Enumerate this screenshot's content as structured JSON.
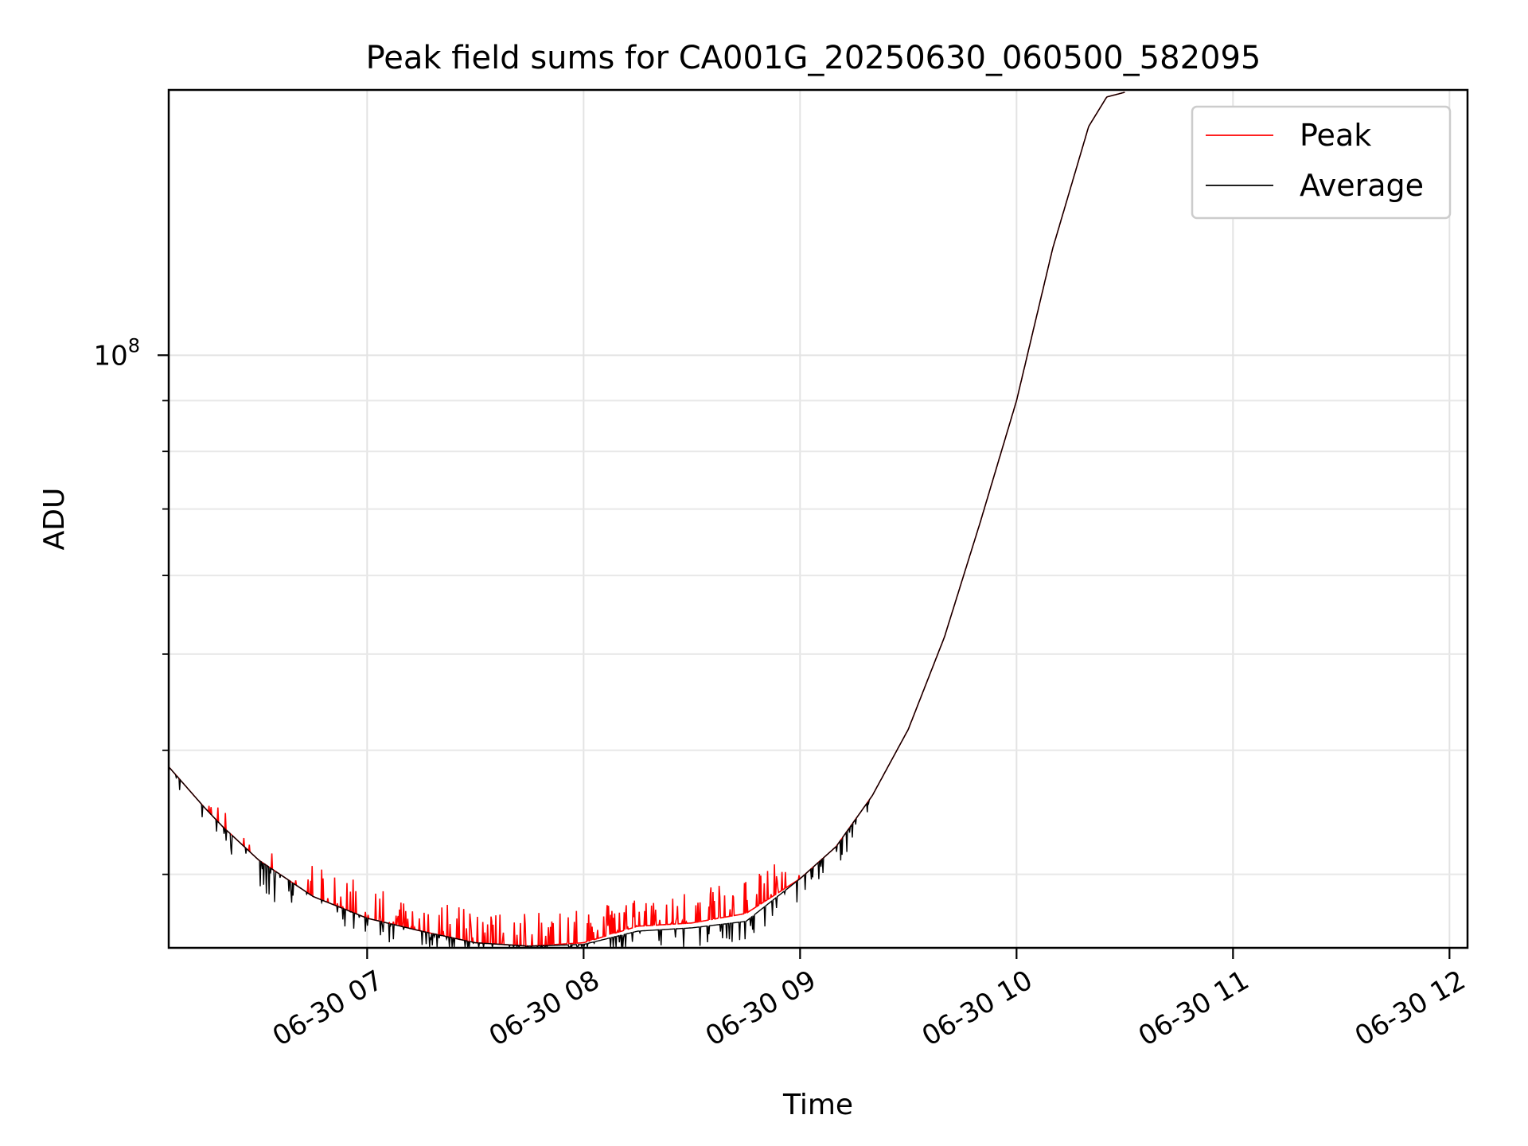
{
  "chart_data": {
    "type": "line",
    "title": "Peak field sums for CA001G_20250630_060500_582095",
    "xlabel": "Time",
    "ylabel": "ADU",
    "x_scale": "time",
    "y_scale": "log",
    "x_range": [
      "06-30 06:05",
      "06-30 12:05"
    ],
    "y_range": [
      25300000,
      185000000
    ],
    "x_ticks": [
      "06-30 07",
      "06-30 08",
      "06-30 09",
      "06-30 10",
      "06-30 11",
      "06-30 12"
    ],
    "y_tick_label": {
      "base": "10",
      "exponent": "8"
    },
    "grid": true,
    "legend": {
      "position": "top-right",
      "entries": [
        "Peak",
        "Average"
      ]
    },
    "colors": {
      "Peak": "#ff0000",
      "Average": "#000000"
    },
    "series": [
      {
        "name": "Peak",
        "x": [
          "06-30 06:05",
          "06-30 06:15",
          "06-30 06:20",
          "06-30 06:30",
          "06-30 06:45",
          "06-30 07:00",
          "06-30 07:15",
          "06-30 07:30",
          "06-30 07:45",
          "06-30 08:00",
          "06-30 08:15",
          "06-30 08:30",
          "06-30 08:45",
          "06-30 09:00",
          "06-30 09:10",
          "06-30 09:20",
          "06-30 09:30",
          "06-30 09:40",
          "06-30 09:50",
          "06-30 10:00",
          "06-30 10:10",
          "06-30 10:20",
          "06-30 10:25",
          "06-30 10:30"
        ],
        "y": [
          38500000,
          35000000,
          33500000,
          31000000,
          28500000,
          27100000,
          26300000,
          25600000,
          25400000,
          25600000,
          26600000,
          26800000,
          27400000,
          29700000,
          32000000,
          36000000,
          42000000,
          52000000,
          68000000,
          90000000,
          128000000,
          170000000,
          182000000,
          184000000
        ]
      },
      {
        "name": "Average",
        "x": [
          "06-30 06:05",
          "06-30 06:15",
          "06-30 06:20",
          "06-30 06:30",
          "06-30 06:45",
          "06-30 07:00",
          "06-30 07:15",
          "06-30 07:30",
          "06-30 07:45",
          "06-30 08:00",
          "06-30 08:15",
          "06-30 08:30",
          "06-30 08:45",
          "06-30 09:00",
          "06-30 09:10",
          "06-30 09:20",
          "06-30 09:30",
          "06-30 09:40",
          "06-30 09:50",
          "06-30 10:00",
          "06-30 10:10",
          "06-30 10:20",
          "06-30 10:25",
          "06-30 10:30"
        ],
        "y": [
          38500000,
          35000000,
          33500000,
          31000000,
          28500000,
          27100000,
          26300000,
          25600000,
          25400000,
          25500000,
          26300000,
          26500000,
          26900000,
          29700000,
          32000000,
          36000000,
          42000000,
          52000000,
          68000000,
          90000000,
          128000000,
          170000000,
          182000000,
          184000000
        ]
      }
    ]
  }
}
